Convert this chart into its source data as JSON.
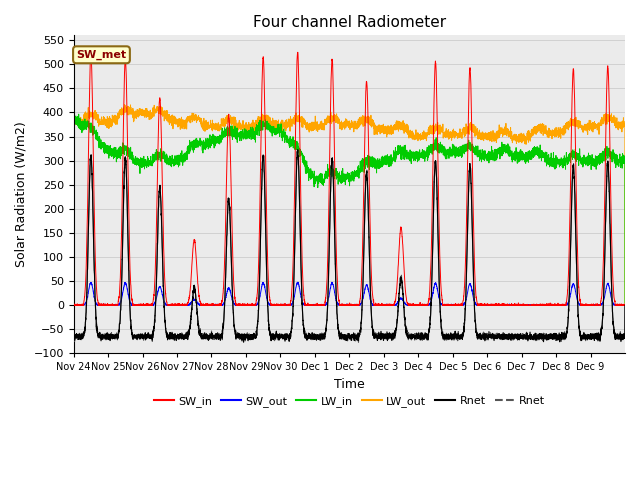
{
  "title": "Four channel Radiometer",
  "xlabel": "Time",
  "ylabel": "Solar Radiation (W/m2)",
  "ylim": [
    -100,
    560
  ],
  "yticks": [
    -100,
    -50,
    0,
    50,
    100,
    150,
    200,
    250,
    300,
    350,
    400,
    450,
    500,
    550
  ],
  "date_labels": [
    "Nov 24",
    "Nov 25",
    "Nov 26",
    "Nov 27",
    "Nov 28",
    "Nov 29",
    "Nov 30",
    "Dec 1",
    "Dec 2",
    "Dec 3",
    "Dec 4",
    "Dec 5",
    "Dec 6",
    "Dec 7",
    "Dec 8",
    "Dec 9"
  ],
  "n_date_labels": 16,
  "annotation": "SW_met",
  "annotation_color": "#8B0000",
  "annotation_bg": "#FFFFCC",
  "annotation_edge": "#8B6914",
  "colors": {
    "SW_in": "#FF0000",
    "SW_out": "#0000FF",
    "LW_in": "#00CC00",
    "LW_out": "#FFA500",
    "Rnet_black": "#000000",
    "Rnet_dark": "#555555"
  },
  "legend_entries": [
    "SW_in",
    "SW_out",
    "LW_in",
    "LW_out",
    "Rnet",
    "Rnet"
  ],
  "legend_colors": [
    "#FF0000",
    "#0000FF",
    "#00CC00",
    "#FFA500",
    "#000000",
    "#555555"
  ],
  "legend_styles": [
    "-",
    "-",
    "-",
    "-",
    "-",
    "--"
  ],
  "grid_color": "#CCCCCC",
  "bg_color": "#EBEBEB",
  "peak_heights_SW_in": [
    520,
    510,
    430,
    135,
    395,
    515,
    525,
    510,
    465,
    160,
    505,
    490,
    0,
    0,
    490,
    495
  ],
  "peak_heights_Rnet": [
    375,
    370,
    310,
    100,
    285,
    375,
    385,
    370,
    340,
    120,
    365,
    355,
    0,
    0,
    355,
    360
  ],
  "lw_in_base": 305,
  "lw_out_base": 372,
  "night_rnet": -65
}
